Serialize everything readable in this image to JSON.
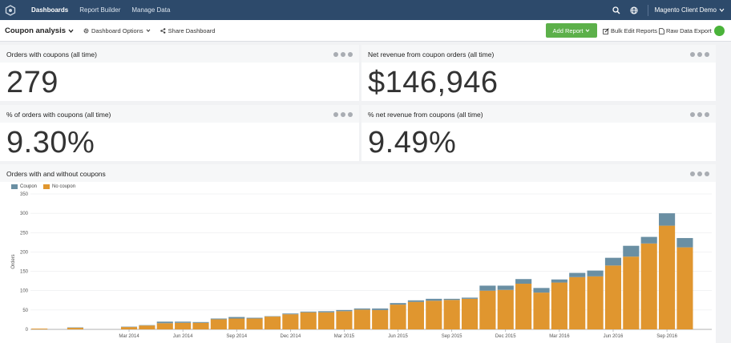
{
  "nav": {
    "items": [
      {
        "label": "Dashboards",
        "active": true
      },
      {
        "label": "Report Builder",
        "active": false
      },
      {
        "label": "Manage Data",
        "active": false
      }
    ],
    "account": "Magento Client Demo"
  },
  "toolbar": {
    "title": "Coupon analysis",
    "dashboard_options": "Dashboard Options",
    "share": "Share Dashboard",
    "add_report": "Add Report",
    "bulk_edit": "Bulk Edit Reports",
    "raw_export": "Raw Data Export"
  },
  "metrics": [
    {
      "title": "Orders with coupons (all time)",
      "value": "279"
    },
    {
      "title": "Net revenue from coupon orders (all time)",
      "value": "$146,946"
    },
    {
      "title": "% of orders with coupons (all time)",
      "value": "9.30%"
    },
    {
      "title": "% net revenue from coupons (all time)",
      "value": "9.49%"
    }
  ],
  "chart_card": {
    "title": "Orders with and without coupons"
  },
  "colors": {
    "coupon": "#6a8fa3",
    "no_coupon": "#e0962f",
    "accent_green": "#5cb04a"
  },
  "chart_data": {
    "type": "bar",
    "stacked": true,
    "title": "Orders with and without coupons",
    "ylabel": "Orders",
    "ylim": [
      0,
      350
    ],
    "yticks": [
      0,
      50,
      100,
      150,
      200,
      250,
      300,
      350
    ],
    "x": [
      "Oct 2013",
      "Nov 2013",
      "Dec 2013",
      "Jan 2014",
      "Feb 2014",
      "Mar 2014",
      "Apr 2014",
      "May 2014",
      "Jun 2014",
      "Jul 2014",
      "Aug 2014",
      "Sep 2014",
      "Oct 2014",
      "Nov 2014",
      "Dec 2014",
      "Jan 2015",
      "Feb 2015",
      "Mar 2015",
      "Apr 2015",
      "May 2015",
      "Jun 2015",
      "Jul 2015",
      "Aug 2015",
      "Sep 2015",
      "Oct 2015",
      "Nov 2015",
      "Dec 2015",
      "Jan 2016",
      "Feb 2016",
      "Mar 2016",
      "Apr 2016",
      "May 2016",
      "Jun 2016",
      "Jul 2016",
      "Aug 2016",
      "Sep 2016",
      "Oct 2016",
      "Nov 2016"
    ],
    "xtick_labels": [
      "Mar 2014",
      "Jun 2014",
      "Sep 2014",
      "Dec 2014",
      "Mar 2015",
      "Jun 2015",
      "Sep 2015",
      "Dec 2015",
      "Mar 2016",
      "Jun 2016",
      "Sep 2016"
    ],
    "legend": [
      "Coupon",
      "No coupon"
    ],
    "series": [
      {
        "name": "No coupon",
        "values": [
          2,
          0,
          4,
          0,
          0,
          6,
          10,
          16,
          17,
          17,
          26,
          28,
          28,
          33,
          39,
          44,
          44,
          47,
          51,
          50,
          64,
          71,
          74,
          76,
          79,
          100,
          102,
          118,
          95,
          121,
          135,
          137,
          165,
          188,
          222,
          268,
          212,
          0
        ]
      },
      {
        "name": "Coupon",
        "values": [
          0,
          0,
          1,
          0,
          0,
          1,
          1,
          4,
          3,
          2,
          2,
          4,
          2,
          1,
          2,
          2,
          3,
          3,
          3,
          4,
          4,
          4,
          5,
          3,
          3,
          13,
          11,
          12,
          12,
          8,
          11,
          15,
          20,
          28,
          17,
          32,
          24,
          0
        ]
      }
    ]
  }
}
